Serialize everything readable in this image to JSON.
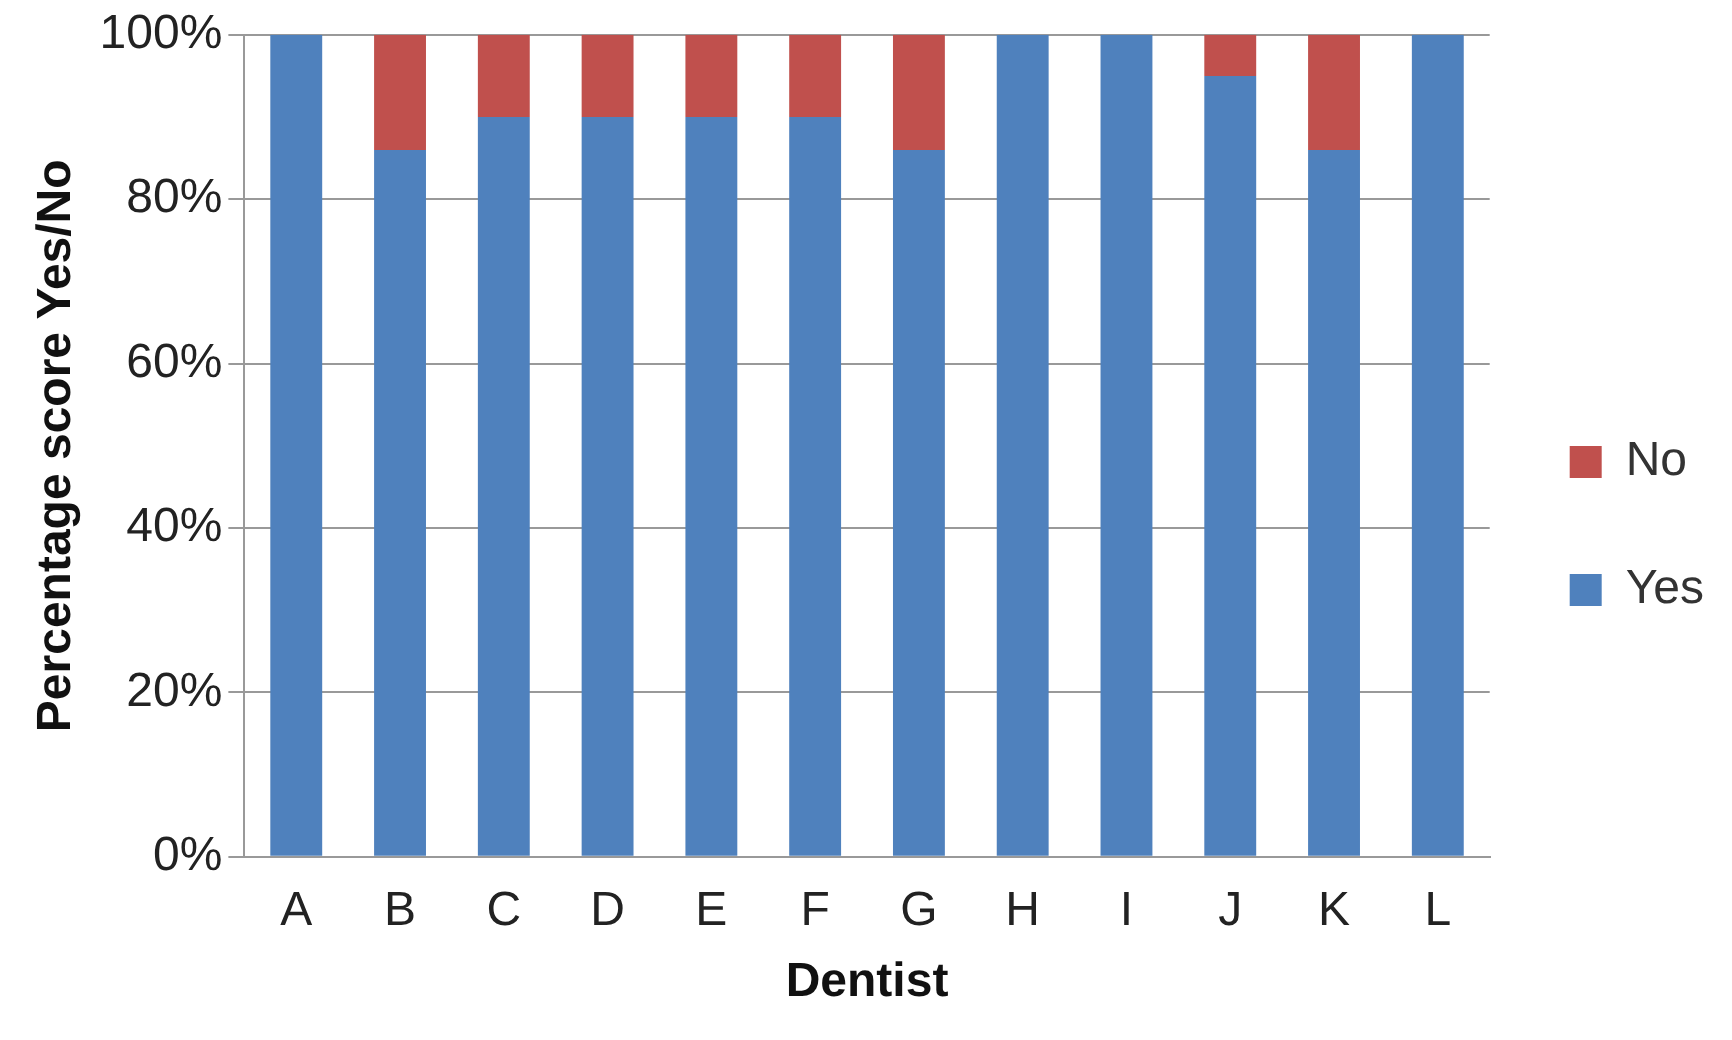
{
  "chart_data": {
    "type": "bar",
    "stacked": true,
    "xlabel": "Dentist",
    "ylabel": "Percentage score Yes/No",
    "categories": [
      "A",
      "B",
      "C",
      "D",
      "E",
      "F",
      "G",
      "H",
      "I",
      "J",
      "K",
      "L"
    ],
    "series": [
      {
        "name": "Yes",
        "color": "#4f81bd",
        "values": [
          100,
          86,
          90,
          90,
          90,
          90,
          86,
          100,
          100,
          95,
          86,
          100
        ]
      },
      {
        "name": "No",
        "color": "#c0504d",
        "values": [
          0,
          14,
          10,
          10,
          10,
          10,
          14,
          0,
          0,
          5,
          14,
          0
        ]
      }
    ],
    "ylim": [
      0,
      100
    ],
    "yticks": [
      {
        "value": 0,
        "label": "0%"
      },
      {
        "value": 20,
        "label": "20%"
      },
      {
        "value": 40,
        "label": "40%"
      },
      {
        "value": 60,
        "label": "60%"
      },
      {
        "value": 80,
        "label": "80%"
      },
      {
        "value": 100,
        "label": "100%"
      }
    ],
    "grid": "y",
    "legend": "right"
  }
}
